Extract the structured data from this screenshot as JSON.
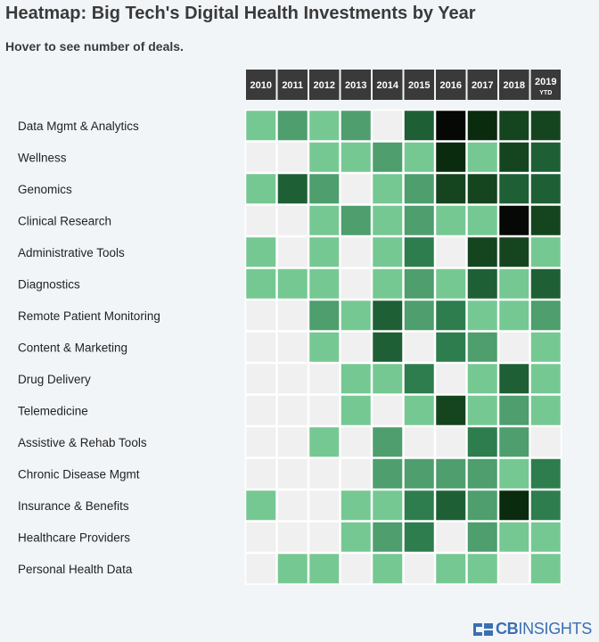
{
  "page": {
    "title": "Heatmap: Big Tech's Digital Health Investments by Year",
    "subtitle": "Hover to see number of deals."
  },
  "logo": {
    "text_bold": "CB",
    "text_light": "INSIGHTS"
  },
  "chart_data": {
    "type": "heatmap",
    "x_labels": [
      "2010",
      "2011",
      "2012",
      "2013",
      "2014",
      "2015",
      "2016",
      "2017",
      "2018",
      "2019"
    ],
    "x_sublabels": [
      "",
      "",
      "",
      "",
      "",
      "",
      "",
      "",
      "",
      "YTD"
    ],
    "y_labels": [
      "Data Mgmt & Analytics",
      "Wellness",
      "Genomics",
      "Clinical Research",
      "Administrative Tools",
      "Diagnostics",
      "Remote Patient Monitoring",
      "Content & Marketing",
      "Drug Delivery",
      "Telemedicine",
      "Assistive & Rehab Tools",
      "Chronic Disease Mgmt",
      "Insurance & Benefits",
      "Healthcare Providers",
      "Personal Health Data"
    ],
    "values": [
      [
        1,
        2,
        1,
        2,
        0,
        4,
        7,
        6,
        5,
        5
      ],
      [
        0,
        0,
        1,
        1,
        2,
        1,
        6,
        1,
        5,
        4
      ],
      [
        1,
        4,
        2,
        0,
        1,
        2,
        5,
        5,
        4,
        4
      ],
      [
        0,
        0,
        1,
        2,
        1,
        2,
        1,
        1,
        7,
        5
      ],
      [
        1,
        0,
        1,
        0,
        1,
        3,
        0,
        5,
        5,
        1
      ],
      [
        1,
        1,
        1,
        0,
        1,
        2,
        1,
        4,
        1,
        4
      ],
      [
        0,
        0,
        2,
        1,
        4,
        2,
        3,
        1,
        1,
        2
      ],
      [
        0,
        0,
        1,
        0,
        4,
        0,
        3,
        2,
        0,
        1
      ],
      [
        0,
        0,
        0,
        1,
        1,
        3,
        0,
        1,
        4,
        1
      ],
      [
        0,
        0,
        0,
        1,
        0,
        1,
        5,
        1,
        2,
        1
      ],
      [
        0,
        0,
        1,
        0,
        2,
        0,
        0,
        3,
        2,
        0
      ],
      [
        0,
        0,
        0,
        0,
        2,
        2,
        2,
        2,
        1,
        3
      ],
      [
        1,
        0,
        0,
        1,
        1,
        3,
        4,
        2,
        6,
        3
      ],
      [
        0,
        0,
        0,
        1,
        2,
        3,
        0,
        2,
        1,
        1
      ],
      [
        0,
        1,
        1,
        0,
        1,
        0,
        1,
        1,
        0,
        1
      ]
    ],
    "color_scale": [
      "#f0f0f0",
      "#76c893",
      "#4e9e6e",
      "#2e7d4f",
      "#1f5f35",
      "#15451f",
      "#0b2b0e",
      "#050805"
    ],
    "header_bg": "#3a3a3a",
    "header_text_color": "#ffffff"
  }
}
